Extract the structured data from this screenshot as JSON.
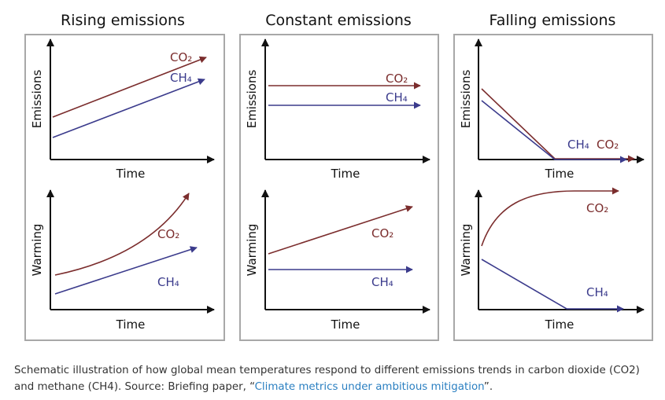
{
  "colors": {
    "co2": "#7b2d2d",
    "ch4": "#3b3b8c"
  },
  "panels": [
    {
      "title": "Rising emissions",
      "top": {
        "xlabel": "Time",
        "ylabel": "Emissions",
        "co2_label": "CO₂",
        "ch4_label": "CH₄"
      },
      "bottom": {
        "xlabel": "Time",
        "ylabel": "Warming",
        "co2_label": "CO₂",
        "ch4_label": "CH₄"
      }
    },
    {
      "title": "Constant emissions",
      "top": {
        "xlabel": "Time",
        "ylabel": "Emissions",
        "co2_label": "CO₂",
        "ch4_label": "CH₄"
      },
      "bottom": {
        "xlabel": "Time",
        "ylabel": "Warming",
        "co2_label": "CO₂",
        "ch4_label": "CH₄"
      }
    },
    {
      "title": "Falling emissions",
      "top": {
        "xlabel": "Time",
        "ylabel": "Emissions",
        "co2_label": "CO₂",
        "ch4_label": "CH₄"
      },
      "bottom": {
        "xlabel": "Time",
        "ylabel": "Warming",
        "co2_label": "CO₂",
        "ch4_label": "CH₄"
      }
    }
  ],
  "caption": {
    "text": "Schematic illustration of how global mean temperatures respond to different emissions trends in carbon dioxide (CO2) and methane (CH4). Source: Briefing paper, “",
    "link_text": "Climate metrics under ambitious mitigation",
    "suffix": "”."
  }
}
